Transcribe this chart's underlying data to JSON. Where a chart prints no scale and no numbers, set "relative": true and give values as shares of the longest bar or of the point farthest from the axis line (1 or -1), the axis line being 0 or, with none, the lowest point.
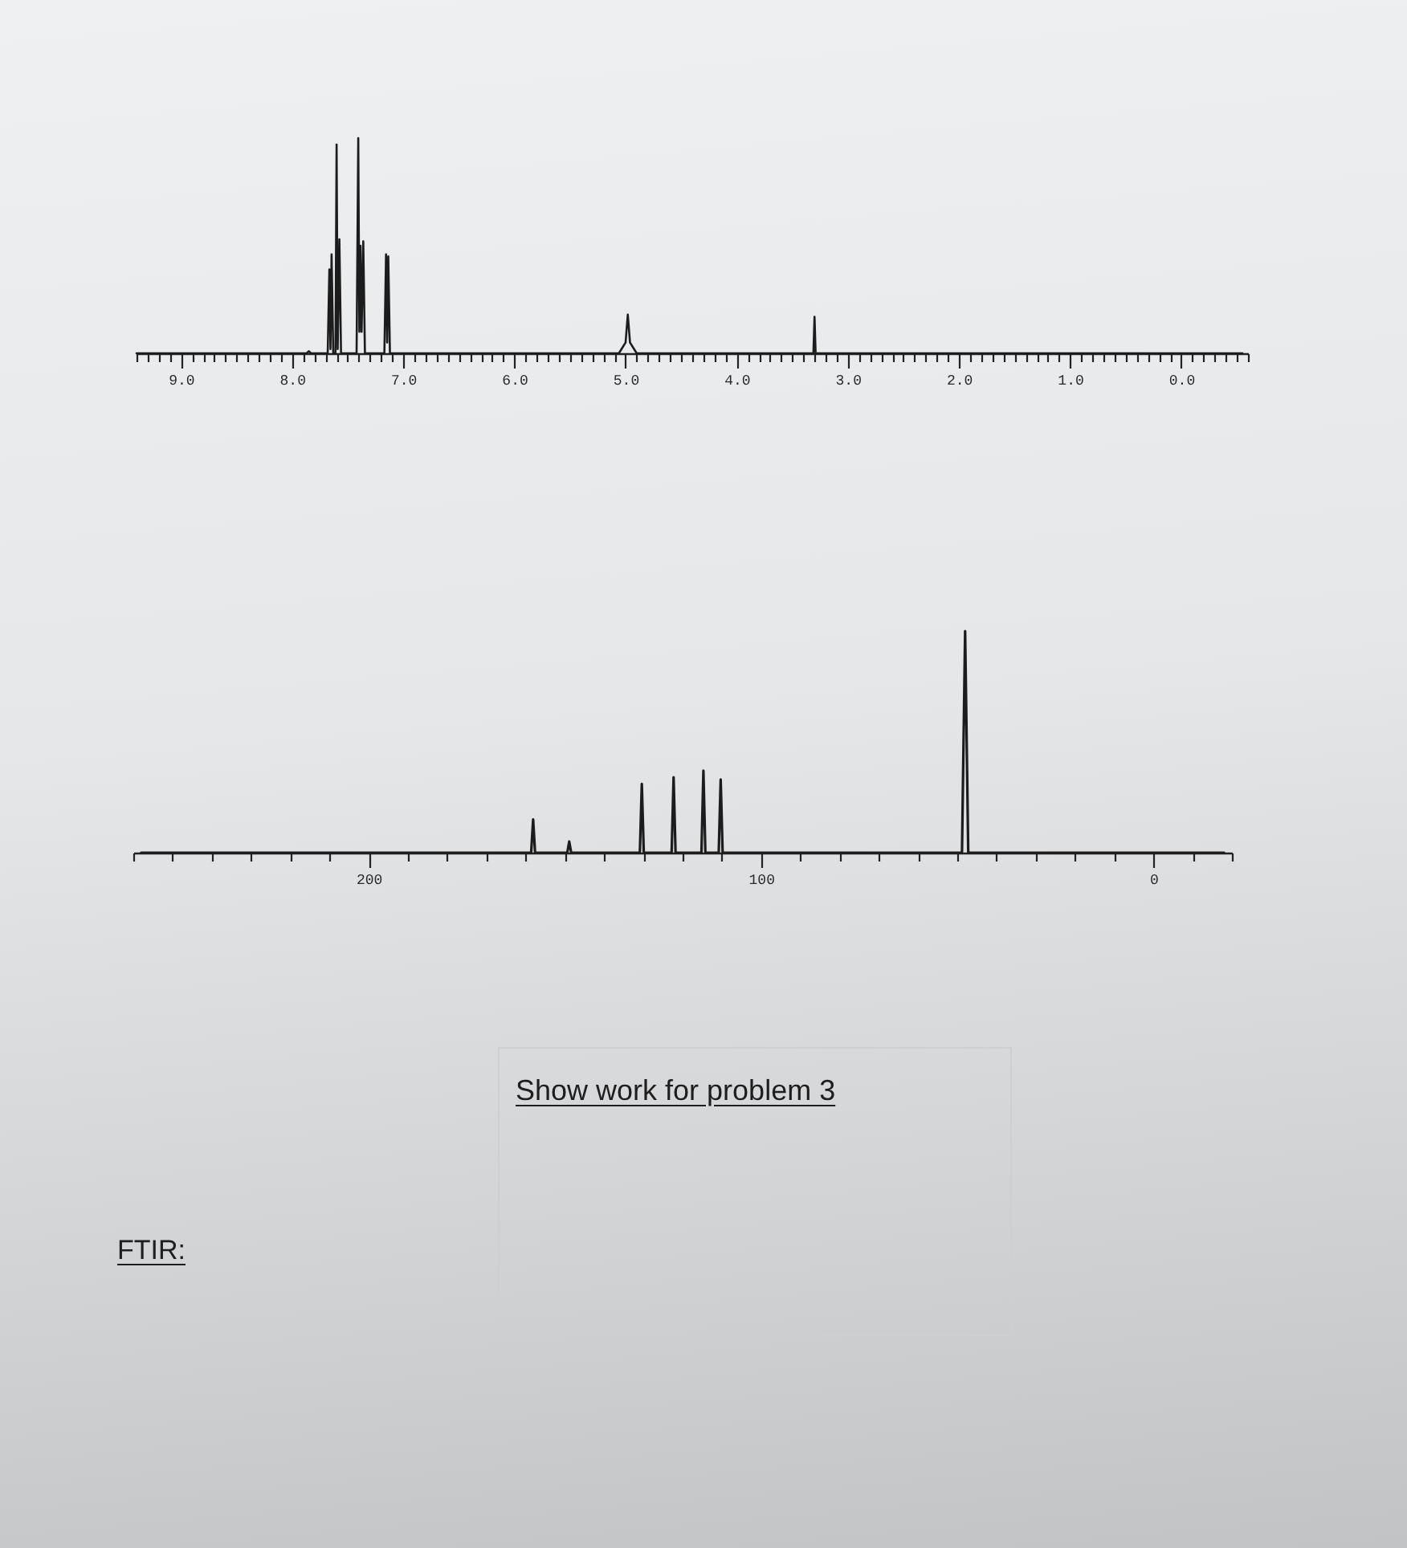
{
  "chart_data": [
    {
      "type": "line",
      "relative": true,
      "x": [
        9.4,
        7.87,
        7.85,
        7.83,
        7.68,
        7.665,
        7.655,
        7.645,
        7.63,
        7.61,
        7.6,
        7.59,
        7.575,
        7.56,
        7.42,
        7.405,
        7.395,
        7.385,
        7.375,
        7.36,
        7.345,
        7.17,
        7.155,
        7.145,
        7.135,
        7.12,
        5.06,
        5.0,
        4.98,
        4.96,
        4.9,
        3.31,
        3.3,
        3.29,
        -0.55
      ],
      "series": [
        {
          "color": "#1c1c1c",
          "values": [
            0,
            0,
            0.01,
            0,
            0,
            0.39,
            0.02,
            0.46,
            0,
            0,
            0.97,
            0.02,
            0.53,
            0,
            0,
            1,
            0.1,
            0.5,
            0.1,
            0.52,
            0,
            0,
            0.46,
            0.05,
            0.45,
            0,
            0,
            0.05,
            0.18,
            0.05,
            0,
            0,
            0.17,
            0,
            0
          ]
        }
      ],
      "xlim": [
        9.4,
        -0.6
      ],
      "xticks": [
        {
          "value": 9.4,
          "label": null
        },
        {
          "value": 9.3,
          "label": null
        },
        {
          "value": 9.2,
          "label": null
        },
        {
          "value": 9.1,
          "label": null
        },
        {
          "value": 9,
          "label": "9.0"
        },
        {
          "value": 8.9,
          "label": null
        },
        {
          "value": 8.8,
          "label": null
        },
        {
          "value": 8.7,
          "label": null
        },
        {
          "value": 8.6,
          "label": null
        },
        {
          "value": 8.5,
          "label": null
        },
        {
          "value": 8.4,
          "label": null
        },
        {
          "value": 8.3,
          "label": null
        },
        {
          "value": 8.2,
          "label": null
        },
        {
          "value": 8.1,
          "label": null
        },
        {
          "value": 8,
          "label": "8.0"
        },
        {
          "value": 7.9,
          "label": null
        },
        {
          "value": 7.8,
          "label": null
        },
        {
          "value": 7.7,
          "label": null
        },
        {
          "value": 7.6,
          "label": null
        },
        {
          "value": 7.5,
          "label": null
        },
        {
          "value": 7.4,
          "label": null
        },
        {
          "value": 7.3,
          "label": null
        },
        {
          "value": 7.2,
          "label": null
        },
        {
          "value": 7.1,
          "label": null
        },
        {
          "value": 7,
          "label": "7.0"
        },
        {
          "value": 6.9,
          "label": null
        },
        {
          "value": 6.8,
          "label": null
        },
        {
          "value": 6.7,
          "label": null
        },
        {
          "value": 6.6,
          "label": null
        },
        {
          "value": 6.5,
          "label": null
        },
        {
          "value": 6.4,
          "label": null
        },
        {
          "value": 6.3,
          "label": null
        },
        {
          "value": 6.2,
          "label": null
        },
        {
          "value": 6.1,
          "label": null
        },
        {
          "value": 6,
          "label": "6.0"
        },
        {
          "value": 5.9,
          "label": null
        },
        {
          "value": 5.8,
          "label": null
        },
        {
          "value": 5.7,
          "label": null
        },
        {
          "value": 5.6,
          "label": null
        },
        {
          "value": 5.5,
          "label": null
        },
        {
          "value": 5.4,
          "label": null
        },
        {
          "value": 5.3,
          "label": null
        },
        {
          "value": 5.2,
          "label": null
        },
        {
          "value": 5.1,
          "label": null
        },
        {
          "value": 5,
          "label": "5.0"
        },
        {
          "value": 4.9,
          "label": null
        },
        {
          "value": 4.8,
          "label": null
        },
        {
          "value": 4.7,
          "label": null
        },
        {
          "value": 4.6,
          "label": null
        },
        {
          "value": 4.5,
          "label": null
        },
        {
          "value": 4.4,
          "label": null
        },
        {
          "value": 4.3,
          "label": null
        },
        {
          "value": 4.2,
          "label": null
        },
        {
          "value": 4.1,
          "label": null
        },
        {
          "value": 4,
          "label": "4.0"
        },
        {
          "value": 3.9,
          "label": null
        },
        {
          "value": 3.8,
          "label": null
        },
        {
          "value": 3.7,
          "label": null
        },
        {
          "value": 3.6,
          "label": null
        },
        {
          "value": 3.5,
          "label": null
        },
        {
          "value": 3.4,
          "label": null
        },
        {
          "value": 3.3,
          "label": null
        },
        {
          "value": 3.2,
          "label": null
        },
        {
          "value": 3.1,
          "label": null
        },
        {
          "value": 3,
          "label": "3.0"
        },
        {
          "value": 2.9,
          "label": null
        },
        {
          "value": 2.8,
          "label": null
        },
        {
          "value": 2.7,
          "label": null
        },
        {
          "value": 2.6,
          "label": null
        },
        {
          "value": 2.5,
          "label": null
        },
        {
          "value": 2.4,
          "label": null
        },
        {
          "value": 2.3,
          "label": null
        },
        {
          "value": 2.2,
          "label": null
        },
        {
          "value": 2.1,
          "label": null
        },
        {
          "value": 2,
          "label": "2.0"
        },
        {
          "value": 1.9,
          "label": null
        },
        {
          "value": 1.8,
          "label": null
        },
        {
          "value": 1.7,
          "label": null
        },
        {
          "value": 1.6,
          "label": null
        },
        {
          "value": 1.5,
          "label": null
        },
        {
          "value": 1.4,
          "label": null
        },
        {
          "value": 1.3,
          "label": null
        },
        {
          "value": 1.2,
          "label": null
        },
        {
          "value": 1.1,
          "label": null
        },
        {
          "value": 1,
          "label": "1.0"
        },
        {
          "value": 0.9,
          "label": null
        },
        {
          "value": 0.8,
          "label": null
        },
        {
          "value": 0.7,
          "label": null
        },
        {
          "value": 0.6,
          "label": null
        },
        {
          "value": 0.5,
          "label": null
        },
        {
          "value": 0.4,
          "label": null
        },
        {
          "value": 0.3,
          "label": null
        },
        {
          "value": 0.2,
          "label": null
        },
        {
          "value": 0.1,
          "label": null
        },
        {
          "value": 0,
          "label": "0.0"
        },
        {
          "value": -0.1,
          "label": null
        },
        {
          "value": -0.2,
          "label": null
        },
        {
          "value": -0.3,
          "label": null
        },
        {
          "value": -0.4,
          "label": null
        },
        {
          "value": -0.5,
          "label": null
        },
        {
          "value": -0.6,
          "label": null
        }
      ]
    },
    {
      "type": "line",
      "relative": true,
      "x": [
        258,
        158.6,
        158.1,
        157.6,
        149.4,
        148.9,
        148.4,
        130.9,
        130.4,
        129.9,
        122.8,
        122.3,
        121.8,
        115.2,
        114.7,
        114.2,
        110.8,
        110.3,
        109.8,
        48.8,
        48,
        47.2,
        -18
      ],
      "series": [
        {
          "color": "#1c1c1c",
          "values": [
            0,
            0,
            0.15,
            0,
            0,
            0.05,
            0,
            0,
            0.31,
            0,
            0,
            0.34,
            0,
            0,
            0.37,
            0,
            0,
            0.33,
            0,
            0,
            1,
            0,
            0
          ]
        }
      ],
      "xlim": [
        260,
        -20
      ],
      "xticks": [
        {
          "value": 260,
          "label": null
        },
        {
          "value": 250,
          "label": null
        },
        {
          "value": 240,
          "label": null
        },
        {
          "value": 230,
          "label": null
        },
        {
          "value": 220,
          "label": null
        },
        {
          "value": 210,
          "label": null
        },
        200,
        {
          "value": 190,
          "label": null
        },
        {
          "value": 180,
          "label": null
        },
        {
          "value": 170,
          "label": null
        },
        {
          "value": 160,
          "label": null
        },
        {
          "value": 150,
          "label": null
        },
        {
          "value": 140,
          "label": null
        },
        {
          "value": 130,
          "label": null
        },
        {
          "value": 120,
          "label": null
        },
        {
          "value": 110,
          "label": null
        },
        100,
        {
          "value": 90,
          "label": null
        },
        {
          "value": 80,
          "label": null
        },
        {
          "value": 70,
          "label": null
        },
        {
          "value": 60,
          "label": null
        },
        {
          "value": 50,
          "label": null
        },
        {
          "value": 40,
          "label": null
        },
        {
          "value": 30,
          "label": null
        },
        {
          "value": 20,
          "label": null
        },
        {
          "value": 10,
          "label": null
        },
        0,
        {
          "value": -10,
          "label": null
        },
        {
          "value": -20,
          "label": null
        }
      ],
      "annotations": [
        "Show work for problem 3",
        "FTIR:"
      ]
    }
  ]
}
